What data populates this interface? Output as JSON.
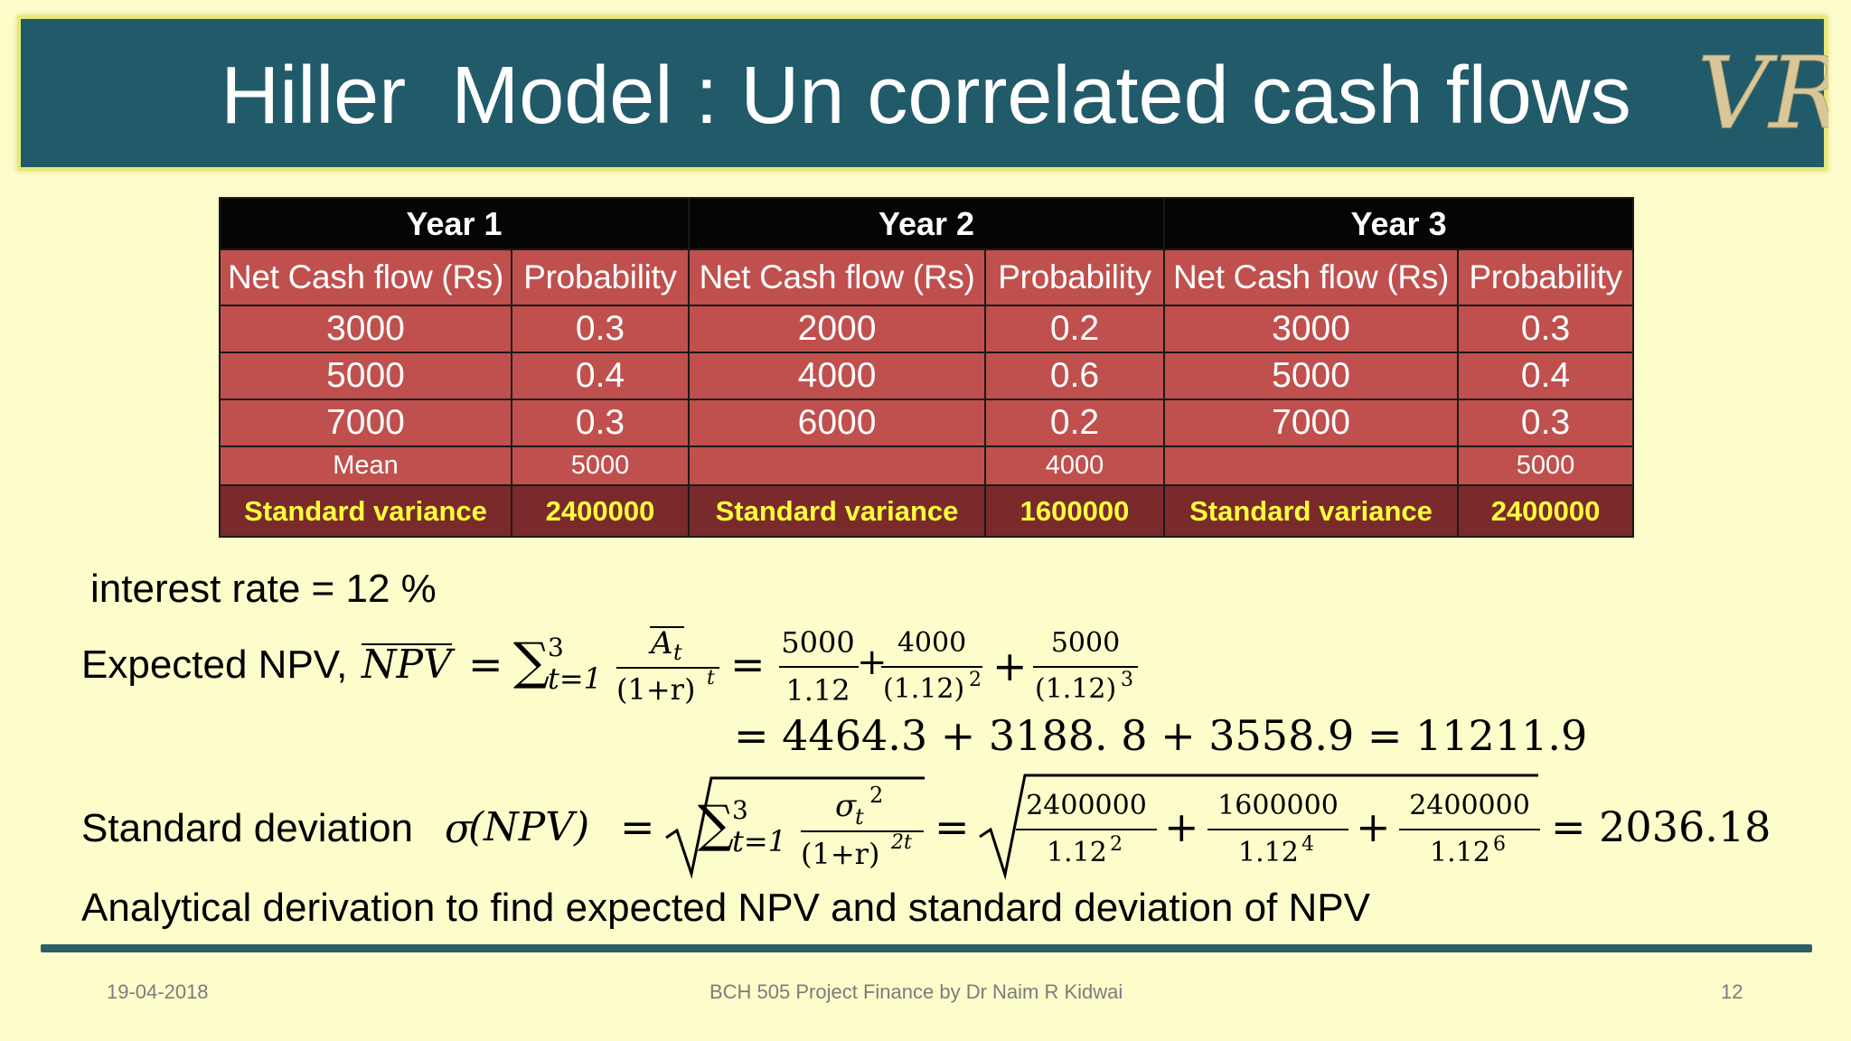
{
  "slide": {
    "title": "Hiller  Model : Un correlated cash flows",
    "logo_text": "VR",
    "colors": {
      "title_bg": "#215b6a",
      "page_bg": "#fdfccb",
      "table_body": "#c0504d",
      "table_footer": "#7a2a2a",
      "highlight_text": "#ffff3c"
    }
  },
  "table": {
    "years": [
      "Year 1",
      "Year 2",
      "Year 3"
    ],
    "col_headers": [
      "Net Cash flow (Rs)",
      "Probability",
      "Net Cash flow (Rs)",
      "Probability",
      "Net Cash flow (Rs)",
      "Probability"
    ],
    "rows": [
      [
        "3000",
        "0.3",
        "2000",
        "0.2",
        "3000",
        "0.3"
      ],
      [
        "5000",
        "0.4",
        "4000",
        "0.6",
        "5000",
        "0.4"
      ],
      [
        "7000",
        "0.3",
        "6000",
        "0.2",
        "7000",
        "0.3"
      ]
    ],
    "mean_row": [
      "Mean",
      "5000",
      "",
      "4000",
      "",
      "5000"
    ],
    "variance_row": [
      "Standard variance",
      "2400000",
      "Standard variance",
      "1600000",
      "Standard variance",
      "2400000"
    ]
  },
  "text": {
    "interest": "interest rate = 12 %",
    "expected_label": "Expected NPV,",
    "npv_sym": "NPV",
    "eq": "=",
    "sum_sym": "∑",
    "sum_sub": "t=1",
    "sum_sup": "3",
    "at_sym": "A",
    "at_sub": "t",
    "at_den": "(1+r)",
    "at_den_sup": "t",
    "f1_num": "5000",
    "f1_den": "1.12",
    "plus": "+",
    "f2_num": "4000",
    "f2_den": "(1.12)",
    "f2_sup": "2",
    "f3_num": "5000",
    "f3_den": "(1.12)",
    "f3_sup": "3",
    "npv_result": "= 4464.3 + 3188. 8 + 3558.9 = 11211.9",
    "sd_label": "Standard deviation",
    "sigma": "σ",
    "sd_npv": "(NPV)",
    "sig_t": "σ",
    "sig_sub": "t",
    "sig_sup": "2",
    "sd_den": "(1+r)",
    "sd_den_sup": "2t",
    "g1_num": "2400000",
    "g1_den": "1.12",
    "g1_sup": "2",
    "g2_num": "1600000",
    "g2_den": "1.12",
    "g2_sup": "4",
    "g3_num": "2400000",
    "g3_den": "1.12",
    "g3_sup": "6",
    "sd_result": "= 2036.18",
    "analytical": "Analytical derivation to find expected NPV and standard deviation of NPV"
  },
  "footer": {
    "date": "19-04-2018",
    "course": "BCH 505 Project Finance  by Dr Naim R Kidwai",
    "page": "12"
  }
}
